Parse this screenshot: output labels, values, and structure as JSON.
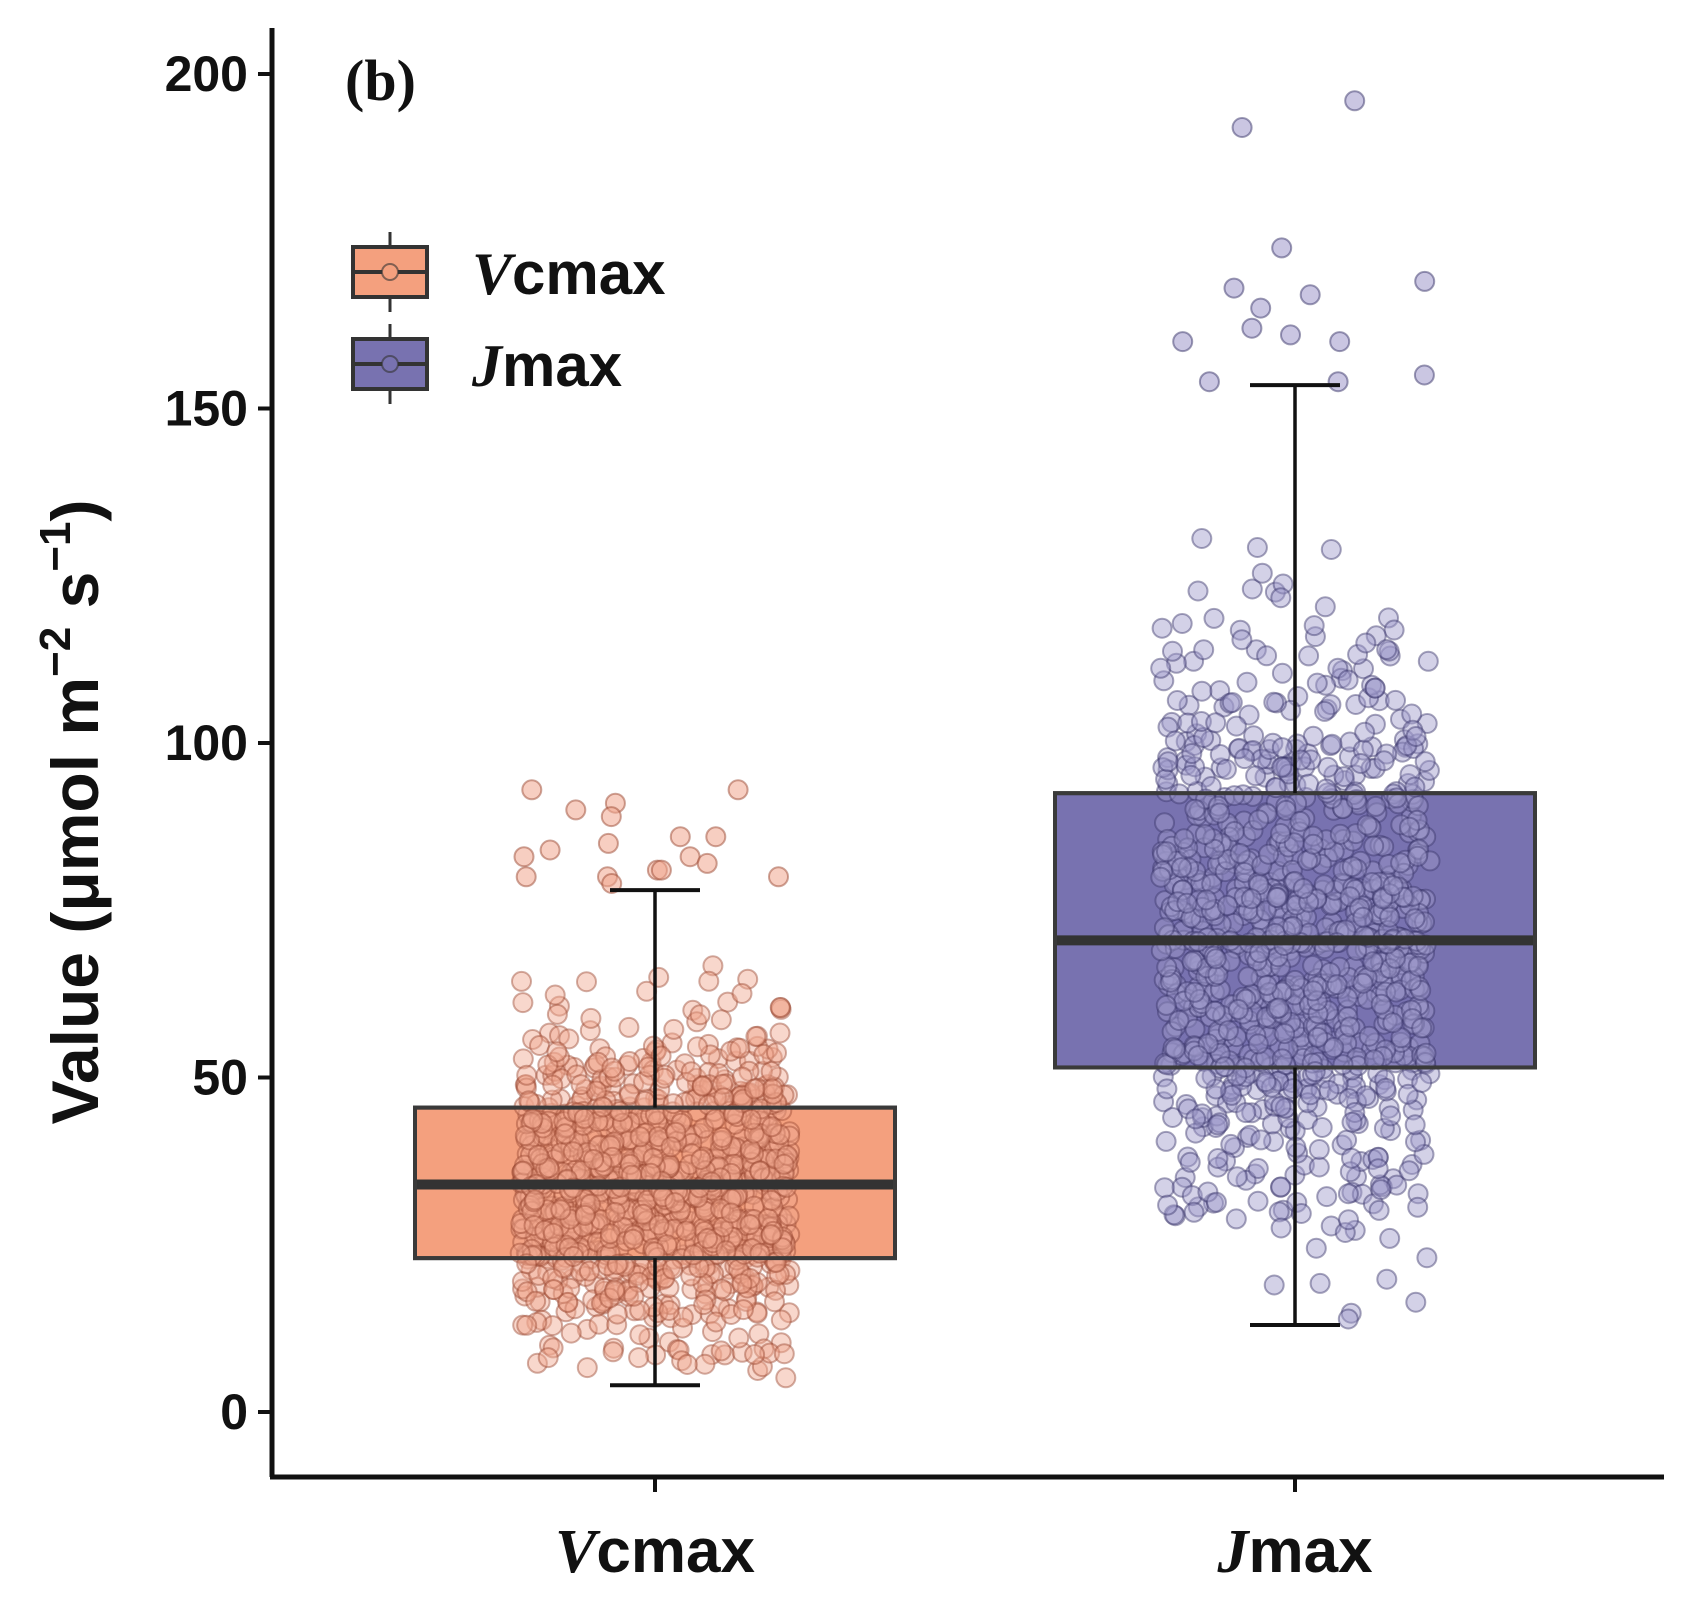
{
  "chart_data": {
    "type": "boxplot",
    "panel_label": "(b)",
    "ylabel": "Value (μmol m⁻² s⁻¹)",
    "ylabel_parts": {
      "main": "Value (μmol m",
      "sup1": "−2",
      "mid": " s",
      "sup2": "−1",
      "end": ")"
    },
    "xlabel": "",
    "ylim": [
      -10,
      205
    ],
    "yticks": [
      0,
      50,
      100,
      150,
      200
    ],
    "categories": [
      "Vcmax",
      "Jmax"
    ],
    "category_parts": [
      {
        "italic": "V",
        "rest": "cmax"
      },
      {
        "italic": "J",
        "rest": "max"
      }
    ],
    "legend": {
      "position": "top-left",
      "entries": [
        {
          "italic": "V",
          "rest": "cmax",
          "color": "#F4A07E"
        },
        {
          "italic": "J",
          "rest": "max",
          "color": "#7872B0"
        }
      ]
    },
    "series": [
      {
        "name": "Vcmax",
        "color": "#F4A07E",
        "point_color": "#F0A68E",
        "point_stroke": "#9C4A33",
        "whisker_low": 4,
        "q1": 23,
        "median": 34,
        "q3": 45.5,
        "whisker_high": 78,
        "points_shown": 1100,
        "outliers": [
          93,
          93,
          91,
          90,
          89,
          86,
          86,
          85,
          84,
          83,
          83,
          82,
          81,
          81,
          80,
          80,
          80,
          79
        ]
      },
      {
        "name": "Jmax",
        "color": "#7872B0",
        "point_color": "#9E98CA",
        "point_stroke": "#3A356A",
        "whisker_low": 13,
        "q1": 51.5,
        "median": 70.5,
        "q3": 92.5,
        "whisker_high": 153.5,
        "points_shown": 1050,
        "outliers": [
          196,
          192,
          174,
          169,
          168,
          167,
          165,
          162,
          161,
          160,
          160,
          155,
          154,
          154
        ]
      }
    ]
  },
  "colors": {
    "axis": "#111111",
    "box_border": "#3A3A3A",
    "median_line": "#333333",
    "background": "#FFFFFF"
  }
}
